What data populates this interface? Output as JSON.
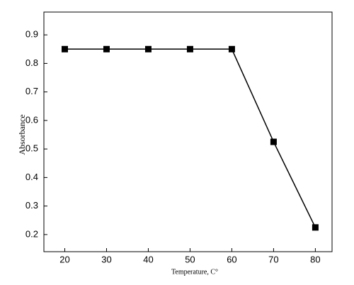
{
  "chart_data": {
    "type": "line",
    "x": [
      20,
      30,
      40,
      50,
      60,
      70,
      80
    ],
    "series": [
      {
        "name": "Absorbance",
        "color": "#000000",
        "values": [
          0.85,
          0.85,
          0.85,
          0.85,
          0.85,
          0.525,
          0.225
        ]
      }
    ],
    "xlabel": "Temperature, C°",
    "ylabel": "Absorbance",
    "xlim": [
      15,
      84
    ],
    "ylim": [
      0.14,
      0.98
    ],
    "xticks": [
      20,
      30,
      40,
      50,
      60,
      70,
      80
    ],
    "yticks": [
      0.2,
      0.3,
      0.4,
      0.5,
      0.6,
      0.7,
      0.8,
      0.9
    ],
    "grid": false
  }
}
